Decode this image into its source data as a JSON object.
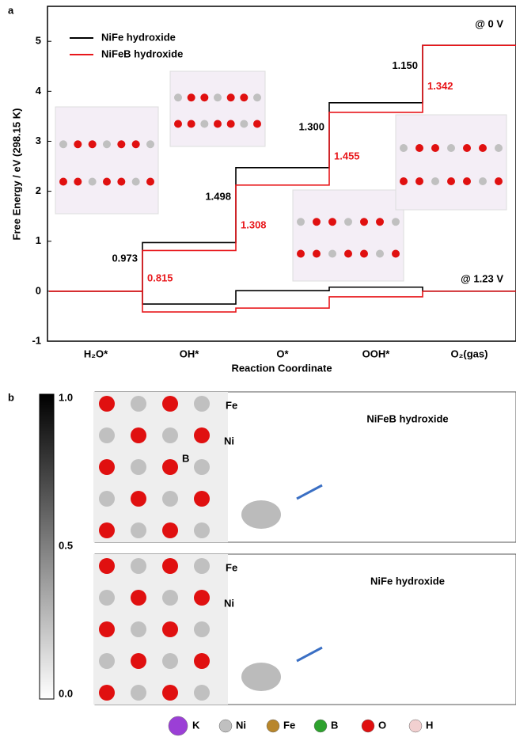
{
  "chart_data": {
    "type": "step",
    "panel_label": "a",
    "xlabel": "Reaction Coordinate",
    "ylabel": "Free Energy / eV (298.15 K)",
    "categories": [
      "H₂O*",
      "OH*",
      "O*",
      "OOH*",
      "O₂(gas)"
    ],
    "ylim": [
      -1,
      5.7
    ],
    "yticks": [
      -1,
      0,
      1,
      2,
      3,
      4,
      5
    ],
    "potential_labels": [
      "@ 0 V",
      "@ 1.23 V"
    ],
    "series": [
      {
        "name": "NiFe hydroxide",
        "color": "#000000",
        "values": [
          0,
          0.973,
          2.471,
          3.771,
          4.921
        ],
        "values_at_1_23V": [
          0,
          -0.257,
          0.011,
          0.081,
          0.001
        ],
        "step_labels": [
          "0.973",
          "1.498",
          "1.300",
          "1.150"
        ]
      },
      {
        "name": "NiFeB hydroxide",
        "color": "#e8171b",
        "values": [
          0,
          0.815,
          2.123,
          3.578,
          4.92
        ],
        "values_at_1_23V": [
          0,
          -0.415,
          -0.337,
          -0.112,
          0.0
        ],
        "step_labels": [
          "0.815",
          "1.308",
          "1.455",
          "1.342"
        ]
      }
    ]
  },
  "panel_b": {
    "label": "b",
    "colorbar_ticks": [
      "1.0",
      "0.5",
      "0.0"
    ],
    "maps": [
      {
        "title": "NiFeB hydroxide",
        "atom_labels": [
          "Fe",
          "Ni",
          "B"
        ]
      },
      {
        "title": "NiFe hydroxide",
        "atom_labels": [
          "Fe",
          "Ni"
        ]
      }
    ],
    "legend": [
      {
        "symbol": "K",
        "color": "#9b3fd6"
      },
      {
        "symbol": "Ni",
        "color": "#c0c0c0"
      },
      {
        "symbol": "Fe",
        "color": "#b8862b"
      },
      {
        "symbol": "B",
        "color": "#2ea22e"
      },
      {
        "symbol": "O",
        "color": "#e01010"
      },
      {
        "symbol": "H",
        "color": "#f2d0d0"
      }
    ]
  }
}
